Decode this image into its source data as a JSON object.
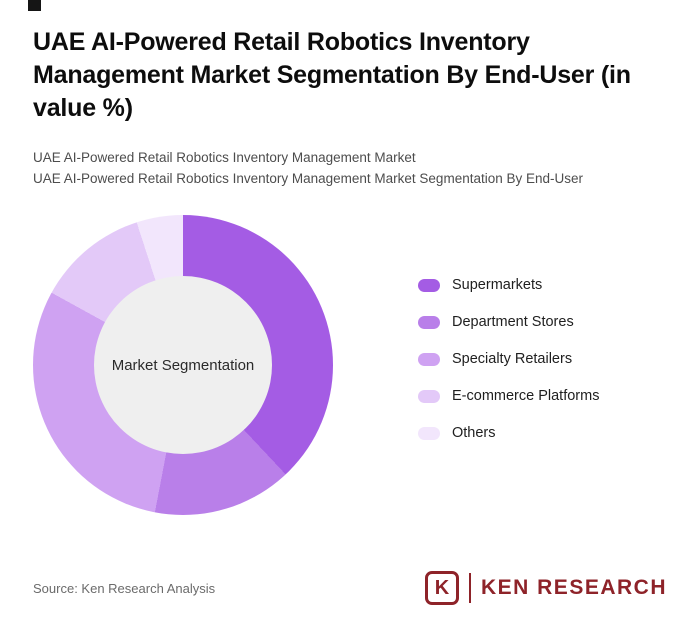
{
  "page": {
    "background_color": "#ffffff"
  },
  "header": {
    "title": "UAE AI-Powered Retail Robotics Inventory Management Market Segmentation By End-User (in value %)",
    "subtitle_line1": "UAE AI-Powered Retail Robotics Inventory Management Market",
    "subtitle_line2": "UAE AI-Powered Retail Robotics Inventory Management Market Segmentation By End-User"
  },
  "chart_data": {
    "type": "pie",
    "variant": "donut",
    "title": "UAE AI-Powered Retail Robotics Inventory Management Market Segmentation By End-User (in value %)",
    "center_label": "Market Segmentation",
    "hole_color": "#efefef",
    "legend_position": "right",
    "start_angle_deg": 0,
    "values_unit": "value %",
    "values_are_estimated_from_arc_angles": true,
    "series": [
      {
        "name": "Supermarkets",
        "value": 38,
        "color": "#a45ce4"
      },
      {
        "name": "Department Stores",
        "value": 15,
        "color": "#b97fe9"
      },
      {
        "name": "Specialty Retailers",
        "value": 30,
        "color": "#cfa2f2"
      },
      {
        "name": "E-commerce Platforms",
        "value": 12,
        "color": "#e3c9f8"
      },
      {
        "name": "Others",
        "value": 5,
        "color": "#f2e6fc"
      }
    ]
  },
  "footer": {
    "source": "Source: Ken Research Analysis",
    "logo": {
      "icon_letter": "K",
      "brand": "KEN RESEARCH",
      "color": "#8e2329"
    }
  }
}
